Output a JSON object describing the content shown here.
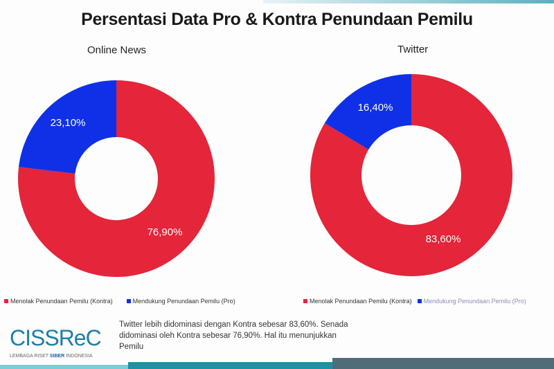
{
  "title": "Persentasi Data Pro & Kontra Penundaan Pemilu",
  "chart_data": [
    {
      "type": "pie",
      "title": "Online News",
      "categories": [
        "Menolak Penundaan Pemilu (Kontra)",
        "Mendukung Penundaan Pemilu (Pro)"
      ],
      "values": [
        76.9,
        23.1
      ],
      "labels": [
        "76,90%",
        "23,10%"
      ],
      "colors": [
        "#e4253a",
        "#1030e8"
      ],
      "donut": true,
      "legend": "bottom"
    },
    {
      "type": "pie",
      "title": "Twitter",
      "categories": [
        "Menolak Penundaan Pemilu (Kontra)",
        "Mendukung Penundaan Pemilu (Pro)"
      ],
      "values": [
        83.6,
        16.4
      ],
      "labels": [
        "83,60%",
        "16,40%"
      ],
      "colors": [
        "#e4253a",
        "#1030e8"
      ],
      "donut": true,
      "legend": "bottom"
    }
  ],
  "description": {
    "line1": "Twitter lebih didominasi dengan Kontra sebesar 83,60%. Senada",
    "line2": "didominasi oleh Kontra sebesar 76,90%. Hal itu menunjukkan",
    "line3": "Pemilu"
  },
  "logo": {
    "name": "CISSReC",
    "tagline_a": "LEMBAGA RISET ",
    "tagline_b": "SIBER",
    "tagline_c": " INDONESIA"
  }
}
